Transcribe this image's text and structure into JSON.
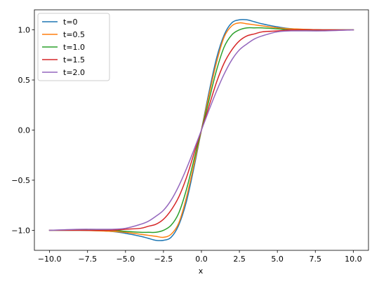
{
  "chart_data": {
    "type": "line",
    "title": "",
    "xlabel": "x",
    "ylabel": "",
    "xlim": [
      -11.0,
      11.0
    ],
    "ylim": [
      -1.2,
      1.2
    ],
    "xticks": [
      -10.0,
      -7.5,
      -5.0,
      -2.5,
      0.0,
      2.5,
      5.0,
      7.5,
      10.0
    ],
    "xtick_labels": [
      "−10.0",
      "−7.5",
      "−5.0",
      "−2.5",
      "0.0",
      "2.5",
      "5.0",
      "7.5",
      "10.0"
    ],
    "yticks": [
      -1.0,
      -0.5,
      0.0,
      0.5,
      1.0
    ],
    "ytick_labels": [
      "−1.0",
      "−0.5",
      "0.0",
      "0.5",
      "1.0"
    ],
    "grid": false,
    "legend_position": "top-left",
    "x": [
      -10,
      -8,
      -6,
      -5,
      -4,
      -3.5,
      -3,
      -2.5,
      -2,
      -1.5,
      -1,
      -0.5,
      0,
      0.5,
      1,
      1.5,
      2,
      2.5,
      3,
      3.5,
      4,
      5,
      6,
      8,
      10
    ],
    "series": [
      {
        "name": "t=0",
        "color": "#1f77b4",
        "values": [
          -1.0,
          -1.0,
          -1.01,
          -1.03,
          -1.06,
          -1.08,
          -1.1,
          -1.1,
          -1.07,
          -0.95,
          -0.72,
          -0.38,
          0.0,
          0.38,
          0.72,
          0.95,
          1.07,
          1.1,
          1.1,
          1.08,
          1.06,
          1.03,
          1.01,
          1.0,
          1.0
        ]
      },
      {
        "name": "t=0.5",
        "color": "#ff7f0e",
        "values": [
          -1.0,
          -1.0,
          -1.01,
          -1.02,
          -1.04,
          -1.05,
          -1.06,
          -1.07,
          -1.04,
          -0.93,
          -0.68,
          -0.35,
          0.0,
          0.35,
          0.68,
          0.93,
          1.04,
          1.07,
          1.06,
          1.05,
          1.04,
          1.02,
          1.01,
          1.0,
          1.0
        ]
      },
      {
        "name": "t=1.0",
        "color": "#2ca02c",
        "values": [
          -1.0,
          -1.0,
          -1.0,
          -1.01,
          -1.02,
          -1.02,
          -1.02,
          -1.0,
          -0.95,
          -0.83,
          -0.6,
          -0.3,
          0.0,
          0.3,
          0.6,
          0.83,
          0.95,
          1.0,
          1.02,
          1.02,
          1.02,
          1.01,
          1.0,
          1.0,
          1.0
        ]
      },
      {
        "name": "t=1.5",
        "color": "#d62728",
        "values": [
          -1.0,
          -1.0,
          -1.0,
          -0.99,
          -0.98,
          -0.96,
          -0.94,
          -0.89,
          -0.8,
          -0.67,
          -0.48,
          -0.24,
          0.0,
          0.24,
          0.48,
          0.67,
          0.8,
          0.89,
          0.94,
          0.96,
          0.98,
          0.99,
          1.0,
          1.0,
          1.0
        ]
      },
      {
        "name": "t=2.0",
        "color": "#9467bd",
        "values": [
          -1.0,
          -0.99,
          -0.99,
          -0.98,
          -0.94,
          -0.91,
          -0.86,
          -0.8,
          -0.7,
          -0.56,
          -0.39,
          -0.2,
          0.0,
          0.2,
          0.39,
          0.56,
          0.7,
          0.8,
          0.86,
          0.91,
          0.94,
          0.98,
          0.99,
          0.99,
          1.0
        ]
      }
    ]
  }
}
